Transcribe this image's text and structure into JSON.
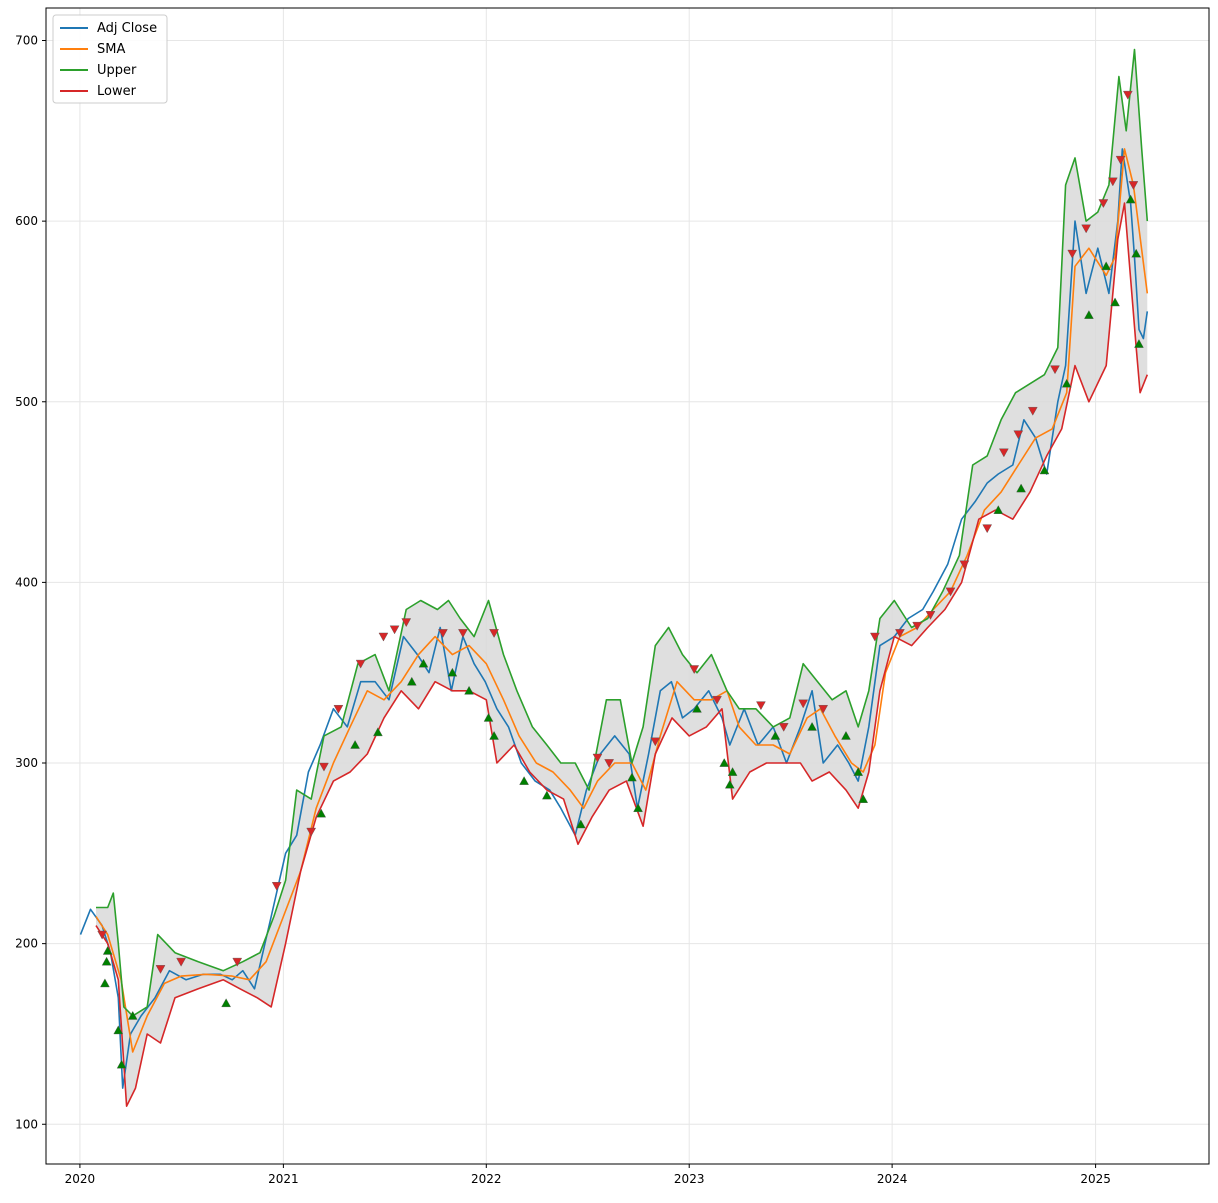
{
  "chart_data": {
    "type": "line",
    "title": "",
    "xlabel": "",
    "ylabel": "",
    "xlim": [
      "2019-11-01",
      "2025-07-24"
    ],
    "ylim": [
      78,
      718
    ],
    "grid": true,
    "legend_position": "top-left",
    "x_ticks": [
      "2020",
      "2021",
      "2022",
      "2023",
      "2024",
      "2025"
    ],
    "y_ticks": [
      100,
      200,
      300,
      400,
      500,
      600,
      700
    ],
    "band_fill_color": "#d9d9d9",
    "series": [
      {
        "name": "Adj Close",
        "color": "#1f77b4",
        "x": [
          "2020-01-02",
          "2020-01-20",
          "2020-02-10",
          "2020-02-25",
          "2020-03-10",
          "2020-03-18",
          "2020-04-01",
          "2020-04-20",
          "2020-05-15",
          "2020-06-10",
          "2020-07-10",
          "2020-08-10",
          "2020-09-10",
          "2020-10-01",
          "2020-10-20",
          "2020-11-10",
          "2020-12-10",
          "2021-01-05",
          "2021-01-25",
          "2021-02-15",
          "2021-03-08",
          "2021-04-01",
          "2021-04-26",
          "2021-05-20",
          "2021-06-15",
          "2021-07-10",
          "2021-08-05",
          "2021-08-30",
          "2021-09-20",
          "2021-10-10",
          "2021-10-30",
          "2021-11-20",
          "2021-12-10",
          "2021-12-30",
          "2022-01-20",
          "2022-02-10",
          "2022-03-05",
          "2022-03-30",
          "2022-04-25",
          "2022-05-15",
          "2022-06-10",
          "2022-06-30",
          "2022-07-25",
          "2022-08-20",
          "2022-09-15",
          "2022-09-30",
          "2022-10-20",
          "2022-11-10",
          "2022-11-30",
          "2022-12-20",
          "2023-01-10",
          "2023-02-05",
          "2023-03-01",
          "2023-03-15",
          "2023-04-10",
          "2023-05-05",
          "2023-06-01",
          "2023-06-25",
          "2023-07-20",
          "2023-08-10",
          "2023-08-30",
          "2023-09-25",
          "2023-10-15",
          "2023-11-01",
          "2023-11-20",
          "2023-12-10",
          "2024-01-05",
          "2024-01-30",
          "2024-02-25",
          "2024-03-15",
          "2024-04-10",
          "2024-05-05",
          "2024-05-30",
          "2024-06-20",
          "2024-07-10",
          "2024-08-05",
          "2024-08-25",
          "2024-09-15",
          "2024-10-05",
          "2024-10-25",
          "2024-11-08",
          "2024-11-25",
          "2024-12-15",
          "2025-01-05",
          "2025-01-25",
          "2025-02-10",
          "2025-02-18",
          "2025-03-05",
          "2025-03-12",
          "2025-03-20",
          "2025-03-28",
          "2025-04-04"
        ],
        "values": [
          205,
          219,
          210,
          195,
          170,
          120,
          150,
          160,
          170,
          185,
          180,
          183,
          183,
          180,
          185,
          175,
          215,
          250,
          260,
          295,
          310,
          330,
          320,
          345,
          345,
          335,
          370,
          360,
          350,
          375,
          340,
          370,
          355,
          345,
          330,
          320,
          300,
          290,
          285,
          275,
          260,
          285,
          305,
          315,
          305,
          275,
          305,
          340,
          345,
          325,
          330,
          340,
          325,
          310,
          330,
          310,
          320,
          300,
          320,
          340,
          300,
          310,
          300,
          290,
          320,
          365,
          370,
          380,
          385,
          395,
          410,
          435,
          445,
          455,
          460,
          465,
          490,
          480,
          460,
          500,
          520,
          600,
          560,
          585,
          560,
          600,
          640,
          610,
          580,
          540,
          535,
          550
        ]
      },
      {
        "name": "SMA",
        "color": "#ff7f0e",
        "x": [
          "2020-01-30",
          "2020-02-20",
          "2020-03-15",
          "2020-04-05",
          "2020-05-01",
          "2020-06-01",
          "2020-07-01",
          "2020-08-15",
          "2020-10-01",
          "2020-11-01",
          "2020-12-01",
          "2021-01-01",
          "2021-02-01",
          "2021-03-01",
          "2021-04-01",
          "2021-05-01",
          "2021-06-01",
          "2021-07-01",
          "2021-08-01",
          "2021-09-01",
          "2021-10-01",
          "2021-11-01",
          "2021-12-01",
          "2022-01-01",
          "2022-02-01",
          "2022-03-01",
          "2022-04-01",
          "2022-05-01",
          "2022-06-01",
          "2022-06-25",
          "2022-07-20",
          "2022-08-20",
          "2022-09-20",
          "2022-10-15",
          "2022-11-10",
          "2022-12-10",
          "2023-01-10",
          "2023-02-10",
          "2023-03-10",
          "2023-04-01",
          "2023-05-01",
          "2023-06-01",
          "2023-07-01",
          "2023-08-01",
          "2023-08-25",
          "2023-09-20",
          "2023-10-20",
          "2023-11-10",
          "2023-12-01",
          "2023-12-20",
          "2024-01-15",
          "2024-02-15",
          "2024-03-15",
          "2024-04-15",
          "2024-05-15",
          "2024-06-15",
          "2024-07-15",
          "2024-08-15",
          "2024-09-15",
          "2024-10-15",
          "2024-11-10",
          "2024-11-25",
          "2024-12-20",
          "2025-01-20",
          "2025-02-05",
          "2025-02-22",
          "2025-03-10",
          "2025-04-04"
        ],
        "values": [
          215,
          205,
          180,
          140,
          160,
          178,
          182,
          183,
          182,
          180,
          190,
          215,
          240,
          275,
          300,
          320,
          340,
          335,
          345,
          360,
          370,
          360,
          365,
          355,
          335,
          315,
          300,
          295,
          285,
          275,
          290,
          300,
          300,
          285,
          315,
          345,
          335,
          335,
          340,
          320,
          310,
          310,
          305,
          325,
          330,
          315,
          300,
          295,
          310,
          350,
          370,
          375,
          385,
          395,
          415,
          440,
          450,
          465,
          480,
          485,
          505,
          575,
          585,
          570,
          580,
          640,
          620,
          560
        ]
      },
      {
        "name": "Upper",
        "color": "#2ca02c",
        "x": [
          "2020-01-30",
          "2020-02-20",
          "2020-03-01",
          "2020-03-10",
          "2020-03-20",
          "2020-04-05",
          "2020-05-01",
          "2020-05-20",
          "2020-06-20",
          "2020-08-01",
          "2020-09-15",
          "2020-10-20",
          "2020-11-20",
          "2020-12-15",
          "2021-01-05",
          "2021-01-25",
          "2021-02-20",
          "2021-03-15",
          "2021-04-15",
          "2021-05-15",
          "2021-06-15",
          "2021-07-10",
          "2021-08-10",
          "2021-09-05",
          "2021-10-05",
          "2021-10-25",
          "2021-11-15",
          "2021-12-10",
          "2022-01-05",
          "2022-02-01",
          "2022-02-25",
          "2022-03-25",
          "2022-04-20",
          "2022-05-15",
          "2022-06-10",
          "2022-07-05",
          "2022-08-05",
          "2022-08-30",
          "2022-09-20",
          "2022-10-10",
          "2022-11-01",
          "2022-11-25",
          "2022-12-20",
          "2023-01-15",
          "2023-02-10",
          "2023-03-10",
          "2023-04-01",
          "2023-05-01",
          "2023-06-01",
          "2023-07-01",
          "2023-07-25",
          "2023-08-20",
          "2023-09-15",
          "2023-10-10",
          "2023-11-01",
          "2023-11-20",
          "2023-12-10",
          "2024-01-05",
          "2024-02-05",
          "2024-03-05",
          "2024-04-01",
          "2024-05-01",
          "2024-05-25",
          "2024-06-20",
          "2024-07-15",
          "2024-08-10",
          "2024-09-05",
          "2024-10-01",
          "2024-10-25",
          "2024-11-08",
          "2024-11-25",
          "2024-12-15",
          "2025-01-05",
          "2025-01-25",
          "2025-02-12",
          "2025-02-25",
          "2025-03-12",
          "2025-03-25",
          "2025-04-04"
        ],
        "values": [
          220,
          220,
          228,
          200,
          165,
          160,
          165,
          205,
          195,
          190,
          185,
          190,
          195,
          215,
          235,
          285,
          280,
          315,
          320,
          355,
          360,
          340,
          385,
          390,
          385,
          390,
          380,
          370,
          390,
          360,
          340,
          320,
          310,
          300,
          300,
          285,
          335,
          335,
          300,
          320,
          365,
          375,
          360,
          350,
          360,
          340,
          330,
          330,
          320,
          325,
          355,
          345,
          335,
          340,
          320,
          340,
          380,
          390,
          375,
          380,
          395,
          415,
          465,
          470,
          490,
          505,
          510,
          515,
          530,
          620,
          635,
          600,
          605,
          620,
          680,
          650,
          695,
          640,
          600
        ]
      },
      {
        "name": "Lower",
        "color": "#d62728",
        "x": [
          "2020-01-30",
          "2020-02-20",
          "2020-03-10",
          "2020-03-25",
          "2020-04-10",
          "2020-05-01",
          "2020-05-25",
          "2020-06-20",
          "2020-08-01",
          "2020-09-15",
          "2020-10-15",
          "2020-11-15",
          "2020-12-10",
          "2021-01-05",
          "2021-02-01",
          "2021-03-01",
          "2021-04-01",
          "2021-05-01",
          "2021-06-01",
          "2021-07-01",
          "2021-08-01",
          "2021-09-01",
          "2021-10-01",
          "2021-11-01",
          "2021-12-01",
          "2022-01-01",
          "2022-01-20",
          "2022-02-20",
          "2022-03-20",
          "2022-04-20",
          "2022-05-20",
          "2022-06-15",
          "2022-07-10",
          "2022-08-10",
          "2022-09-10",
          "2022-10-10",
          "2022-11-01",
          "2022-12-01",
          "2023-01-01",
          "2023-02-01",
          "2023-03-01",
          "2023-03-20",
          "2023-04-20",
          "2023-05-20",
          "2023-06-20",
          "2023-07-20",
          "2023-08-10",
          "2023-09-10",
          "2023-10-10",
          "2023-11-01",
          "2023-11-20",
          "2023-12-10",
          "2024-01-05",
          "2024-02-05",
          "2024-03-05",
          "2024-04-05",
          "2024-05-05",
          "2024-06-05",
          "2024-07-05",
          "2024-08-05",
          "2024-09-05",
          "2024-10-05",
          "2024-11-01",
          "2024-11-25",
          "2024-12-20",
          "2025-01-20",
          "2025-02-10",
          "2025-02-22",
          "2025-03-15",
          "2025-03-22",
          "2025-04-04"
        ],
        "values": [
          210,
          200,
          180,
          110,
          120,
          150,
          145,
          170,
          175,
          180,
          175,
          170,
          165,
          200,
          240,
          270,
          290,
          295,
          305,
          325,
          340,
          330,
          345,
          340,
          340,
          335,
          300,
          310,
          295,
          285,
          280,
          255,
          270,
          285,
          290,
          265,
          305,
          325,
          315,
          320,
          330,
          280,
          295,
          300,
          300,
          300,
          290,
          295,
          285,
          275,
          295,
          340,
          370,
          365,
          375,
          385,
          400,
          435,
          440,
          435,
          450,
          470,
          485,
          520,
          500,
          520,
          590,
          610,
          530,
          505,
          515
        ]
      }
    ],
    "markers": {
      "buy": {
        "symbol": "triangle-up",
        "color": "#008000",
        "x": [
          "2020-02-15",
          "2020-02-18",
          "2020-02-20",
          "2020-03-10",
          "2020-03-16",
          "2020-04-05",
          "2020-09-20",
          "2021-03-10",
          "2021-05-10",
          "2021-06-20",
          "2021-08-20",
          "2021-09-10",
          "2021-11-01",
          "2021-12-01",
          "2022-01-05",
          "2022-01-15",
          "2022-03-10",
          "2022-04-20",
          "2022-06-20",
          "2022-09-20",
          "2022-10-01",
          "2023-01-15",
          "2023-03-05",
          "2023-03-15",
          "2023-03-20",
          "2023-06-05",
          "2023-08-10",
          "2023-10-10",
          "2023-11-01",
          "2023-11-10",
          "2024-07-10",
          "2024-08-20",
          "2024-10-01",
          "2024-11-10",
          "2024-12-20",
          "2025-01-20",
          "2025-02-05",
          "2025-03-05",
          "2025-03-15",
          "2025-03-20"
        ],
        "values": [
          178,
          190,
          196,
          152,
          133,
          160,
          167,
          272,
          310,
          317,
          345,
          355,
          350,
          340,
          325,
          315,
          290,
          282,
          266,
          292,
          275,
          330,
          300,
          288,
          295,
          315,
          320,
          315,
          295,
          280,
          440,
          452,
          462,
          510,
          548,
          575,
          555,
          612,
          582,
          532
        ]
      },
      "sell": {
        "symbol": "triangle-down",
        "color": "#d62728",
        "x": [
          "2020-02-10",
          "2020-05-25",
          "2020-07-01",
          "2020-10-10",
          "2020-12-20",
          "2021-02-20",
          "2021-03-15",
          "2021-04-10",
          "2021-05-20",
          "2021-06-30",
          "2021-07-20",
          "2021-08-10",
          "2021-10-15",
          "2021-11-20",
          "2022-01-15",
          "2022-07-20",
          "2022-08-10",
          "2022-11-01",
          "2023-01-10",
          "2023-02-20",
          "2023-05-10",
          "2023-06-20",
          "2023-07-25",
          "2023-08-30",
          "2023-12-01",
          "2024-01-15",
          "2024-02-15",
          "2024-03-10",
          "2024-04-15",
          "2024-05-10",
          "2024-06-20",
          "2024-07-20",
          "2024-08-15",
          "2024-09-10",
          "2024-10-20",
          "2024-11-20",
          "2024-12-15",
          "2025-01-15",
          "2025-02-01",
          "2025-02-15",
          "2025-02-28",
          "2025-03-10"
        ],
        "values": [
          205,
          186,
          190,
          190,
          232,
          262,
          298,
          330,
          355,
          370,
          374,
          378,
          372,
          372,
          372,
          303,
          300,
          312,
          352,
          335,
          332,
          320,
          333,
          330,
          370,
          372,
          376,
          382,
          395,
          410,
          430,
          472,
          482,
          495,
          518,
          582,
          596,
          610,
          622,
          634,
          670,
          620
        ]
      }
    }
  }
}
